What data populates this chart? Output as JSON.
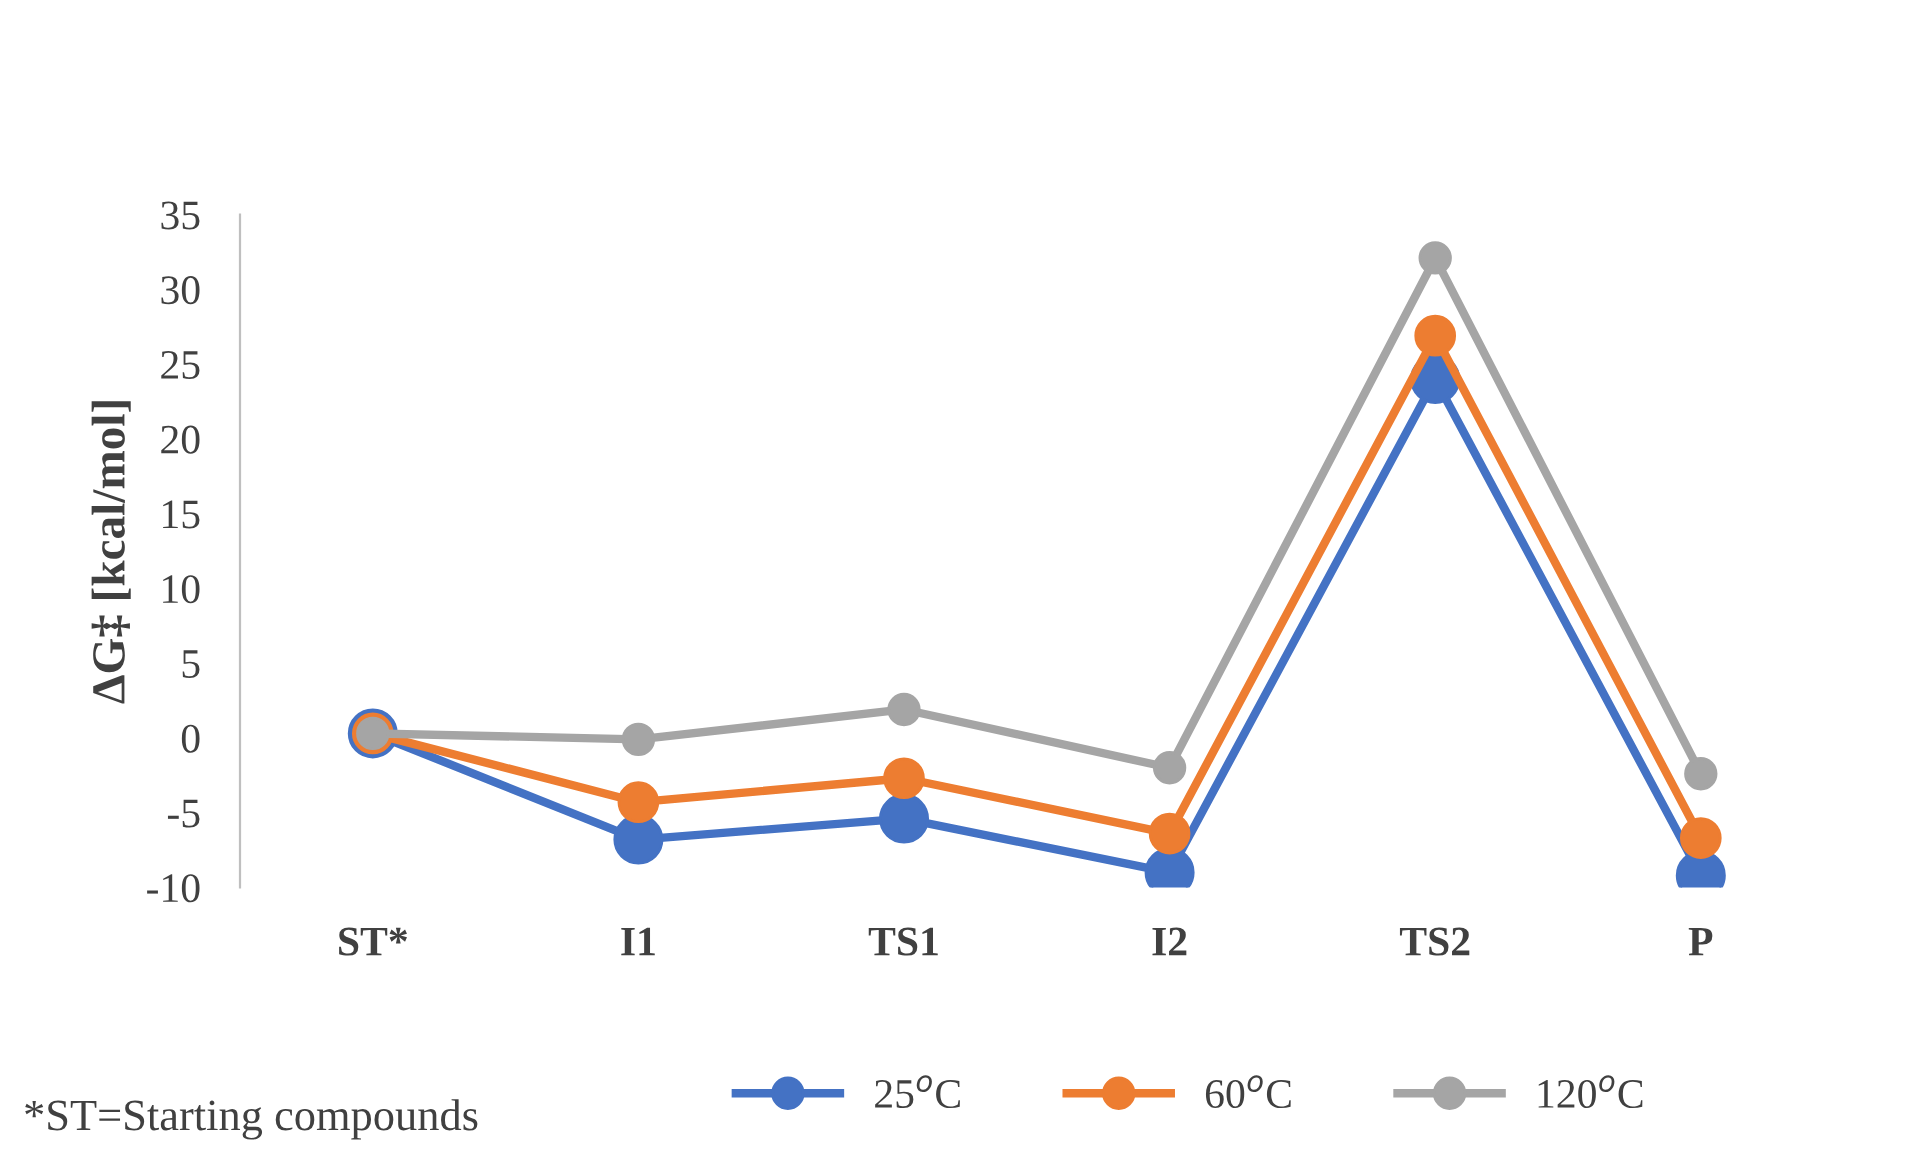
{
  "chart_data": {
    "type": "line",
    "ylabel": "ΔG‡ [kcal/mol]",
    "categories": [
      "ST*",
      "I1",
      "TS1",
      "I2",
      "TS2",
      "P"
    ],
    "series": [
      {
        "name": "25$^{o}$C",
        "color": "#4472c4",
        "values": [
          0.3,
          -6.8,
          -5.4,
          -9.0,
          24.0,
          -9.2
        ]
      },
      {
        "name": "60$^{o}$C",
        "color": "#ed7d31",
        "values": [
          0.3,
          -4.3,
          -2.7,
          -6.4,
          26.9,
          -6.7
        ]
      },
      {
        "name": "120$^{o}$C",
        "color": "#a5a5a5",
        "values": [
          0.3,
          -0.1,
          1.9,
          -2.0,
          32.1,
          -2.4
        ]
      }
    ],
    "ylim": [
      -10,
      35
    ],
    "yticks": [
      -10,
      -5,
      0,
      5,
      10,
      15,
      20,
      25,
      30,
      35
    ],
    "grid": false,
    "legend": "bottom",
    "marker": "circle",
    "line_style": "solid",
    "annotations": [
      "*ST=Starting compounds"
    ]
  }
}
